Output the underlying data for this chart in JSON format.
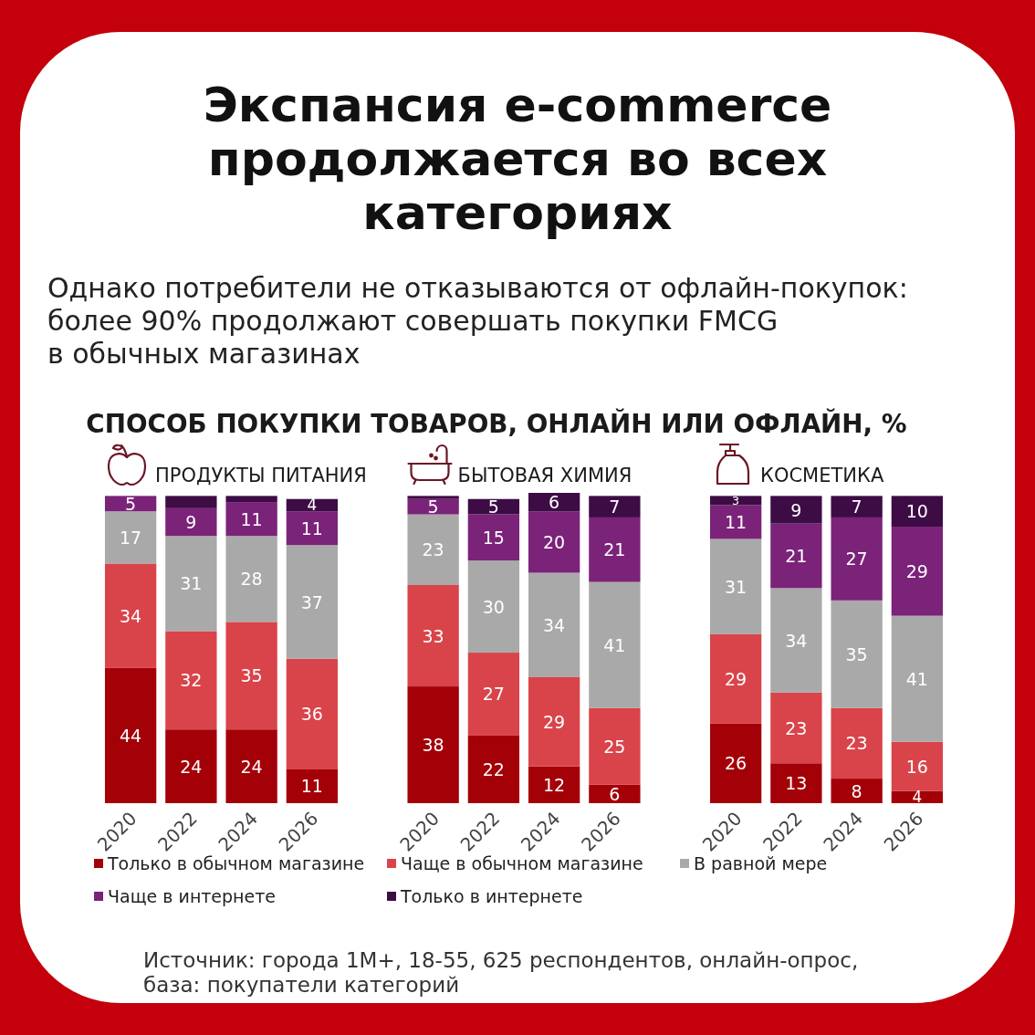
{
  "chart_data": [
    {
      "type": "other",
      "title": "Экспансия e-commerce продолжается во всех категориях",
      "subtitle": "Однако потребители не отказываются от офлайн-покупок:\nболее 90% продолжают совершать покупки FMCG\nв обычных магазинах",
      "annotations": [
        "СПОСОБ ПОКУПКИ ТОВАРОВ, ОНЛАЙН ИЛИ ОФЛАЙН, %",
        "Источник: города 1М+, 18-55, 625 респондентов, онлайн-опрос, база: покупатели категорий"
      ]
    },
    {
      "type": "bar",
      "title": "ПРОДУКТЫ ПИТАНИЯ",
      "categories": [
        "2020",
        "2022",
        "2024",
        "2026"
      ],
      "stacked": true,
      "data_labels": true,
      "legend": "bottom",
      "series": [
        {
          "name": "Только в обычном магазине",
          "color": "#a30008",
          "values": [
            44,
            24,
            24,
            11
          ]
        },
        {
          "name": "Чаще в обычном магазине",
          "color": "#d9444a",
          "values": [
            34,
            32,
            35,
            36
          ]
        },
        {
          "name": "В равной мере",
          "color": "#a9a9a9",
          "values": [
            17,
            31,
            28,
            37
          ]
        },
        {
          "name": "Чаще в интернете",
          "color": "#7b2279",
          "values": [
            5,
            9,
            11,
            11
          ]
        },
        {
          "name": "Только в интернете",
          "color": "#3d0c45",
          "values": [
            null,
            4,
            2,
            4
          ],
          "value_labels": [
            null,
            null,
            null,
            "4"
          ]
        }
      ]
    },
    {
      "type": "bar",
      "title": "БЫТОВАЯ ХИМИЯ",
      "categories": [
        "2020",
        "2022",
        "2024",
        "2026"
      ],
      "stacked": true,
      "data_labels": true,
      "series": [
        {
          "color": "#a30008",
          "values": [
            38,
            22,
            12,
            6
          ]
        },
        {
          "color": "#d9444a",
          "values": [
            33,
            27,
            29,
            25
          ]
        },
        {
          "color": "#a9a9a9",
          "values": [
            23,
            30,
            34,
            41
          ]
        },
        {
          "color": "#7b2279",
          "values": [
            5,
            15,
            20,
            21
          ]
        },
        {
          "color": "#3d0c45",
          "values": [
            1,
            5,
            6,
            7
          ],
          "value_labels": [
            null,
            "5",
            "6",
            "7"
          ]
        }
      ]
    },
    {
      "type": "bar",
      "title": "КОСМЕТИКА",
      "categories": [
        "2020",
        "2022",
        "2024",
        "2026"
      ],
      "stacked": true,
      "data_labels": true,
      "series": [
        {
          "color": "#a30008",
          "values": [
            26,
            13,
            8,
            4
          ]
        },
        {
          "color": "#d9444a",
          "values": [
            29,
            23,
            23,
            16
          ]
        },
        {
          "color": "#a9a9a9",
          "values": [
            31,
            34,
            35,
            41
          ]
        },
        {
          "color": "#7b2279",
          "values": [
            11,
            21,
            27,
            29
          ]
        },
        {
          "color": "#3d0c45",
          "values": [
            3,
            9,
            7,
            10
          ]
        }
      ]
    }
  ]
}
